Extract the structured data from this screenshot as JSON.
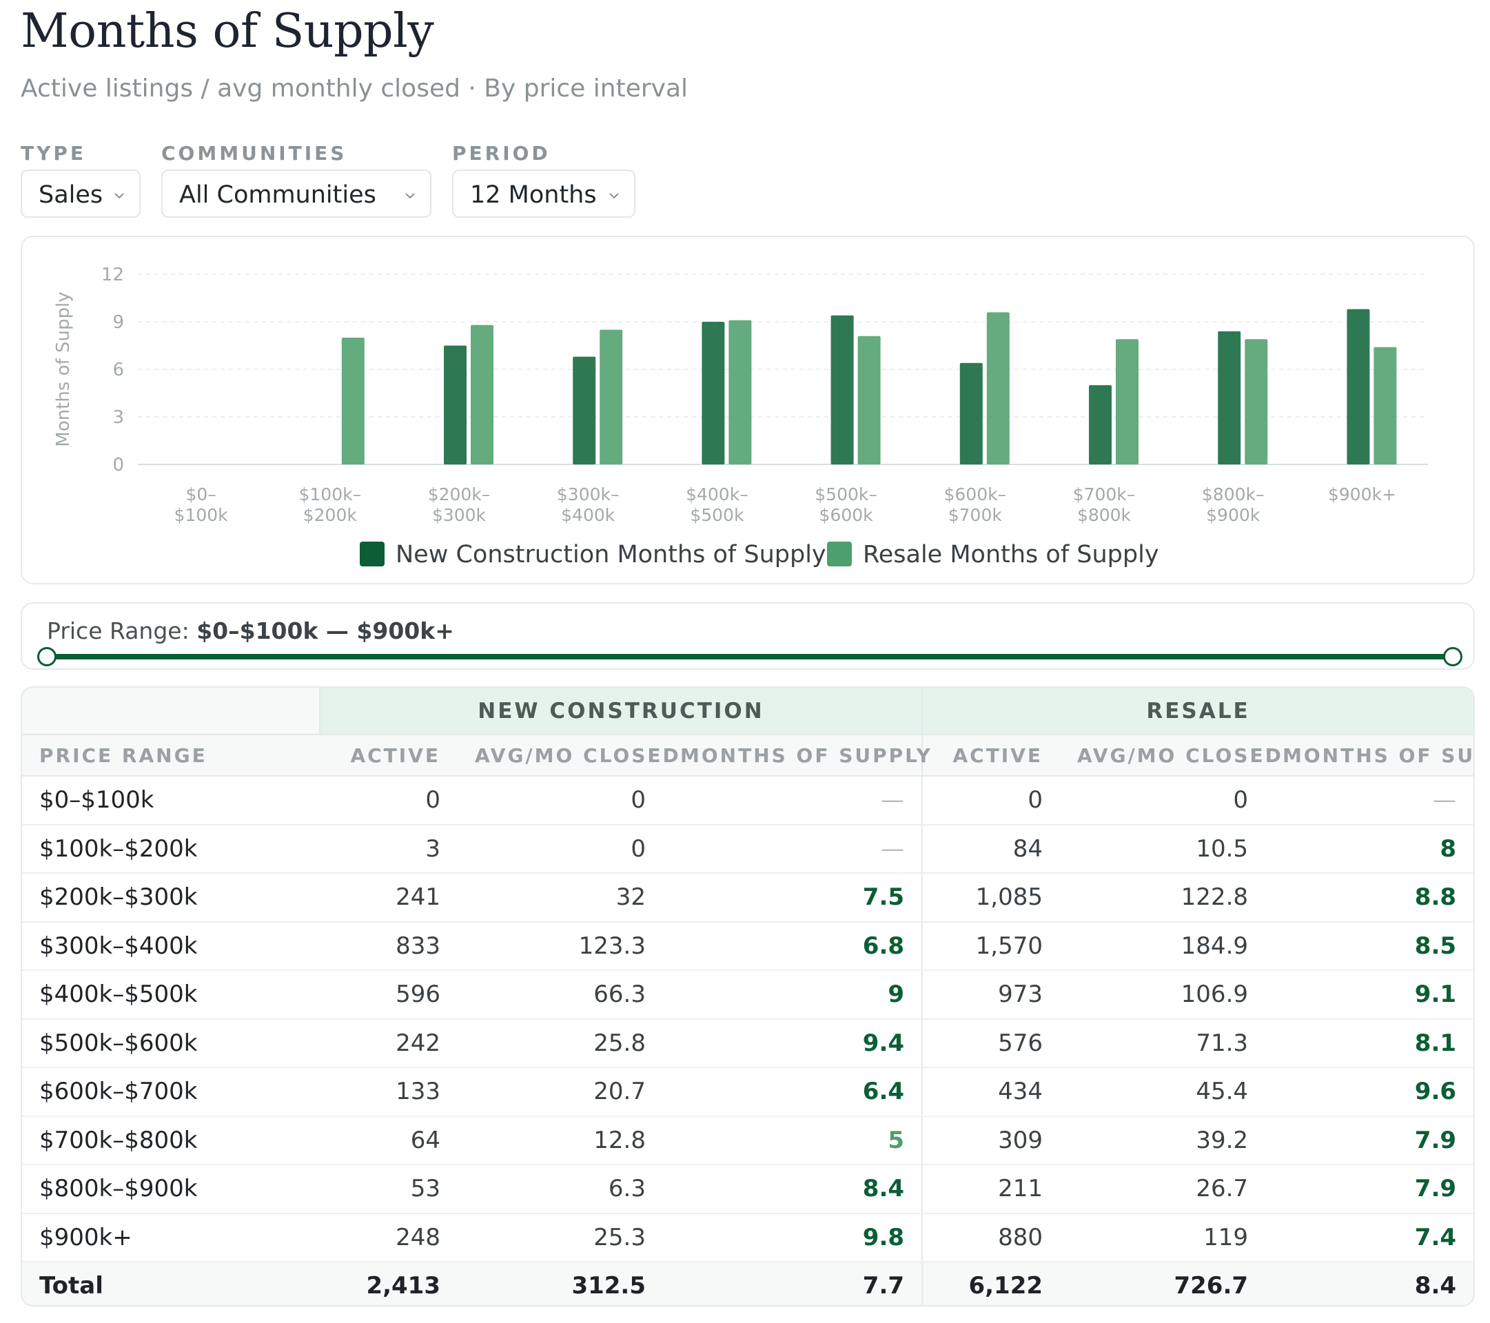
{
  "title": "Months of Supply",
  "subtitle": "Active listings / avg monthly closed · By price interval",
  "filters": {
    "type": {
      "label": "TYPE",
      "value": "Sales"
    },
    "communities": {
      "label": "COMMUNITIES",
      "value": "All Communities"
    },
    "period": {
      "label": "PERIOD",
      "value": "12 Months"
    }
  },
  "colors": {
    "new_construction": "#2e7953",
    "resale": "#64ab7e",
    "legend_new_construction": "#0b5e35",
    "legend_resale": "#4e9f6e",
    "accent": "#0b5e35"
  },
  "chart_data": {
    "type": "bar",
    "title": "",
    "xlabel": "",
    "ylabel": "Months of Supply",
    "ylim": [
      0,
      12
    ],
    "yticks": [
      0,
      3,
      6,
      9,
      12
    ],
    "grid": true,
    "legend_position": "bottom",
    "categories": [
      [
        "$0–",
        "$100k"
      ],
      [
        "$100k–",
        "$200k"
      ],
      [
        "$200k–",
        "$300k"
      ],
      [
        "$300k–",
        "$400k"
      ],
      [
        "$400k–",
        "$500k"
      ],
      [
        "$500k–",
        "$600k"
      ],
      [
        "$600k–",
        "$700k"
      ],
      [
        "$700k–",
        "$800k"
      ],
      [
        "$800k–",
        "$900k"
      ],
      [
        "$900k+"
      ]
    ],
    "series": [
      {
        "name": "New Construction Months of Supply",
        "values": [
          null,
          null,
          7.5,
          6.8,
          9,
          9.4,
          6.4,
          5,
          8.4,
          9.8
        ]
      },
      {
        "name": "Resale Months of Supply",
        "values": [
          null,
          8,
          8.8,
          8.5,
          9.1,
          8.1,
          9.6,
          7.9,
          7.9,
          7.4
        ]
      }
    ]
  },
  "price_range": {
    "label": "Price Range: ",
    "value": "$0–$100k — $900k+",
    "min_fraction": 0,
    "max_fraction": 1
  },
  "table": {
    "groups": {
      "new_construction": "NEW CONSTRUCTION",
      "resale": "RESALE"
    },
    "columns": [
      "PRICE RANGE",
      "ACTIVE",
      "AVG/MO CLOSED",
      "MONTHS OF SUPPLY",
      "ACTIVE",
      "AVG/MO CLOSED",
      "MONTHS OF SUPPLY"
    ],
    "rows": [
      [
        "$0–$100k",
        "0",
        "0",
        "—",
        "0",
        "0",
        "—"
      ],
      [
        "$100k–$200k",
        "3",
        "0",
        "—",
        "84",
        "10.5",
        "8"
      ],
      [
        "$200k–$300k",
        "241",
        "32",
        "7.5",
        "1,085",
        "122.8",
        "8.8"
      ],
      [
        "$300k–$400k",
        "833",
        "123.3",
        "6.8",
        "1,570",
        "184.9",
        "8.5"
      ],
      [
        "$400k–$500k",
        "596",
        "66.3",
        "9",
        "973",
        "106.9",
        "9.1"
      ],
      [
        "$500k–$600k",
        "242",
        "25.8",
        "9.4",
        "576",
        "71.3",
        "8.1"
      ],
      [
        "$600k–$700k",
        "133",
        "20.7",
        "6.4",
        "434",
        "45.4",
        "9.6"
      ],
      [
        "$700k–$800k",
        "64",
        "12.8",
        "5",
        "309",
        "39.2",
        "7.9"
      ],
      [
        "$800k–$900k",
        "53",
        "6.3",
        "8.4",
        "211",
        "26.7",
        "7.9"
      ],
      [
        "$900k+",
        "248",
        "25.3",
        "9.8",
        "880",
        "119",
        "7.4"
      ]
    ],
    "total": [
      "Total",
      "2,413",
      "312.5",
      "7.7",
      "6,122",
      "726.7",
      "8.4"
    ]
  }
}
